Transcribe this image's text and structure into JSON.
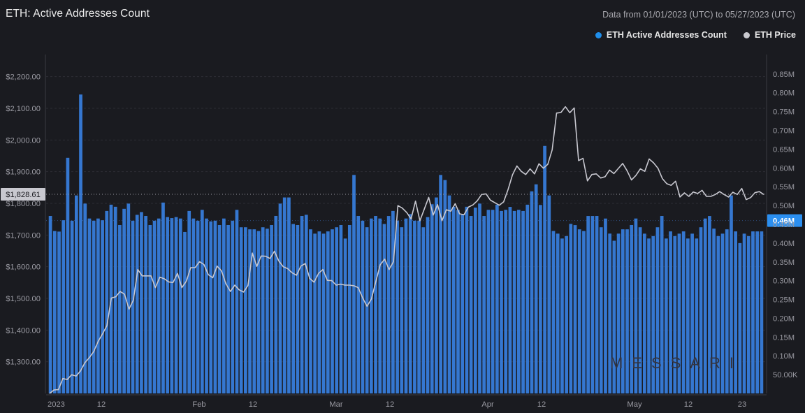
{
  "header": {
    "title": "ETH: Active Addresses Count",
    "date_range": "Data from 01/01/2023 (UTC) to 05/27/2023 (UTC)"
  },
  "legend": [
    {
      "label": "ETH Active Addresses Count",
      "color": "#1f8eea"
    },
    {
      "label": "ETH Price",
      "color": "#b4b4bc"
    }
  ],
  "watermark": "MESSARI",
  "chart_data": {
    "type": "bar+line",
    "x_tick_labels": [
      "2023",
      "12",
      "Feb",
      "12",
      "Mar",
      "12",
      "Apr",
      "12",
      "May",
      "12",
      "23"
    ],
    "left_axis": {
      "label": "ETH Price",
      "ticks": [
        "$1,300.00",
        "$1,400.00",
        "$1,500.00",
        "$1,600.00",
        "$1,700.00",
        "$1,800.00",
        "$1,900.00",
        "$2,000.00",
        "$2,100.00",
        "$2,200.00"
      ],
      "range": [
        1200,
        2250
      ]
    },
    "right_axis": {
      "label": "ETH Active Addresses Count",
      "ticks": [
        "50.00K",
        "0.10M",
        "0.15M",
        "0.20M",
        "0.25M",
        "0.30M",
        "0.35M",
        "0.40M",
        "0.45M",
        "0.50M",
        "0.55M",
        "0.60M",
        "0.65M",
        "0.70M",
        "0.75M",
        "0.80M",
        "0.85M"
      ],
      "range": [
        0,
        0.885
      ]
    },
    "price_marker": "$1,828.61",
    "count_marker": "0.46M",
    "series": [
      {
        "name": "ETH Active Addresses Count",
        "type": "bar",
        "color": "#3577d0",
        "axis": "right",
        "values": [
          0.4722,
          0.4321,
          0.4306,
          0.4608,
          0.6269,
          0.4596,
          0.5268,
          0.7953,
          0.5051,
          0.4654,
          0.4596,
          0.4654,
          0.4608,
          0.4855,
          0.5022,
          0.4967,
          0.4481,
          0.4912,
          0.5051,
          0.4596,
          0.4752,
          0.4825,
          0.4722,
          0.4481,
          0.4596,
          0.4654,
          0.5078,
          0.4692,
          0.4665,
          0.4692,
          0.4654,
          0.4296,
          0.4855,
          0.4654,
          0.4596,
          0.4885,
          0.4654,
          0.4578,
          0.4596,
          0.4481,
          0.4654,
          0.4481,
          0.4596,
          0.4885,
          0.4421,
          0.4421,
          0.4366,
          0.4366,
          0.4321,
          0.4421,
          0.4383,
          0.4481,
          0.4723,
          0.5051,
          0.5214,
          0.5214,
          0.4508,
          0.4481,
          0.4722,
          0.4753,
          0.4366,
          0.4251,
          0.4311,
          0.4251,
          0.4311,
          0.4366,
          0.4421,
          0.4481,
          0.4121,
          0.4481,
          0.5813,
          0.4722,
          0.4596,
          0.4422,
          0.4654,
          0.4722,
          0.4654,
          0.4508,
          0.4721,
          0.4855,
          0.4596,
          0.4422,
          0.4654,
          0.4771,
          0.4596,
          0.4596,
          0.4421,
          0.4691,
          0.5034,
          0.5214,
          0.5813,
          0.5677,
          0.5268,
          0.4967,
          0.4884,
          0.4754,
          0.4967,
          0.4722,
          0.4943,
          0.5051,
          0.4722,
          0.4885,
          0.4885,
          0.5022,
          0.4855,
          0.4885,
          0.4963,
          0.4855,
          0.4885,
          0.4855,
          0.5022,
          0.5377,
          0.5563,
          0.5014,
          0.6586,
          0.5268,
          0.4322,
          0.4252,
          0.4122,
          0.4187,
          0.4511,
          0.4479,
          0.4366,
          0.4321,
          0.4721,
          0.4721,
          0.4722,
          0.4421,
          0.4653,
          0.4253,
          0.4063,
          0.4252,
          0.4366,
          0.4366,
          0.4481,
          0.4654,
          0.4421,
          0.4251,
          0.4122,
          0.4187,
          0.4421,
          0.4722,
          0.4122,
          0.4311,
          0.4187,
          0.4251,
          0.4311,
          0.4122,
          0.4251,
          0.4122,
          0.4421,
          0.4654,
          0.4721,
          0.4385,
          0.4187,
          0.4251,
          0.4366,
          0.5268,
          0.4311,
          0.4,
          0.4251,
          0.4187,
          0.4311,
          0.4311,
          0.4311
        ]
      },
      {
        "name": "ETH Price",
        "type": "line",
        "color": "#c8c8d0",
        "axis": "left",
        "values": [
          1200,
          1211,
          1212,
          1247,
          1244,
          1259,
          1255,
          1271,
          1297,
          1313,
          1332,
          1364,
          1388,
          1414,
          1501,
          1505,
          1522,
          1513,
          1466,
          1495,
          1591,
          1571,
          1571,
          1571,
          1534,
          1567,
          1562,
          1552,
          1550,
          1579,
          1534,
          1554,
          1597,
          1597,
          1616,
          1607,
          1575,
          1565,
          1602,
          1587,
          1546,
          1522,
          1542,
          1527,
          1520,
          1541,
          1643,
          1601,
          1634,
          1633,
          1626,
          1649,
          1618,
          1600,
          1594,
          1581,
          1573,
          1602,
          1610,
          1563,
          1551,
          1579,
          1591,
          1557,
          1556,
          1542,
          1545,
          1542,
          1542,
          1540,
          1534,
          1502,
          1475,
          1498,
          1553,
          1606,
          1624,
          1591,
          1616,
          1793,
          1785,
          1771,
          1751,
          1807,
          1745,
          1782,
          1819,
          1763,
          1796,
          1745,
          1780,
          1775,
          1799,
          1767,
          1764,
          1788,
          1795,
          1808,
          1828,
          1830,
          1810,
          1802,
          1794,
          1805,
          1844,
          1890,
          1918,
          1901,
          1891,
          1909,
          1893,
          1925,
          1911,
          1923,
          1969,
          2085,
          2087,
          2105,
          2086,
          2101,
          1935,
          1942,
          1871,
          1891,
          1893,
          1880,
          1884,
          1905,
          1894,
          1910,
          1926,
          1903,
          1874,
          1888,
          1909,
          1901,
          1940,
          1928,
          1911,
          1878,
          1862,
          1857,
          1870,
          1820,
          1833,
          1822,
          1836,
          1831,
          1841,
          1822,
          1822,
          1828,
          1837,
          1828,
          1820,
          1835,
          1828,
          1847,
          1812,
          1818,
          1834,
          1837,
          1828
        ]
      }
    ],
    "grid": true
  }
}
